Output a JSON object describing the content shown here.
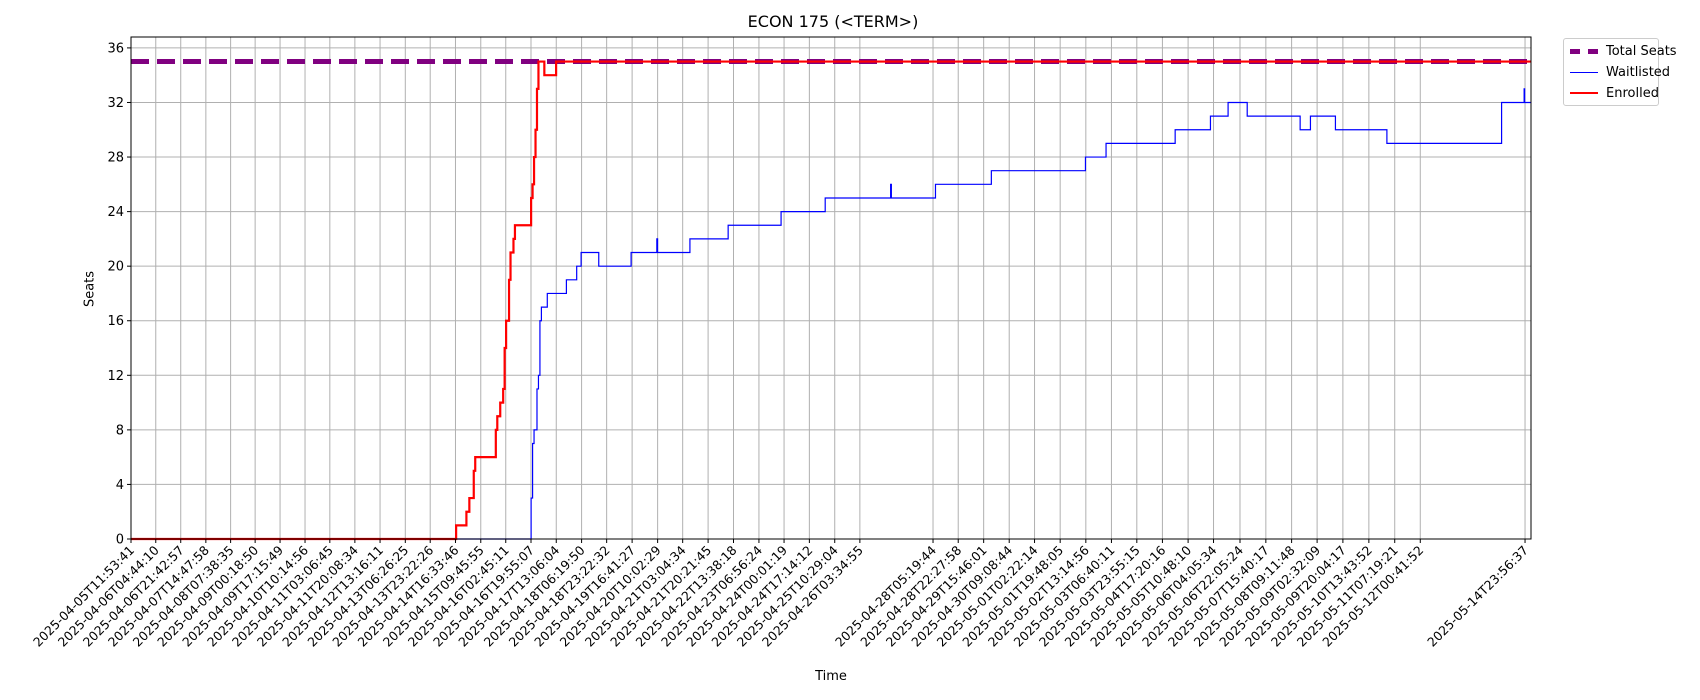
{
  "chart_data": {
    "type": "line",
    "title": "ECON 175 (<TERM>)",
    "xlabel": "Time",
    "ylabel": "Seats",
    "ylim": [
      0,
      36.8
    ],
    "yticks": [
      0,
      4,
      8,
      12,
      16,
      20,
      24,
      28,
      32,
      36
    ],
    "grid": true,
    "legend_position": "outside top-right",
    "x_range": [
      "2025-04-05T11:53:41",
      "2025-05-15T04:00:00"
    ],
    "x_tick_labels": [
      "2025-04-05T11:53:41",
      "2025-04-06T04:44:10",
      "2025-04-06T21:42:57",
      "2025-04-07T14:47:58",
      "2025-04-08T07:38:35",
      "2025-04-09T00:18:50",
      "2025-04-09T17:15:49",
      "2025-04-10T10:14:56",
      "2025-04-11T03:06:45",
      "2025-04-11T20:08:34",
      "2025-04-12T13:16:11",
      "2025-04-13T06:26:25",
      "2025-04-13T23:22:26",
      "2025-04-14T16:33:46",
      "2025-04-15T09:45:55",
      "2025-04-16T02:45:11",
      "2025-04-16T19:55:07",
      "2025-04-17T13:06:04",
      "2025-04-18T06:19:50",
      "2025-04-18T23:22:32",
      "2025-04-19T16:41:27",
      "2025-04-20T10:02:29",
      "2025-04-21T03:04:34",
      "2025-04-21T20:21:45",
      "2025-04-22T13:38:18",
      "2025-04-23T06:56:24",
      "2025-04-24T00:01:19",
      "2025-04-24T17:14:12",
      "2025-04-25T10:29:04",
      "2025-04-26T03:34:55",
      "2025-04-28T05:19:44",
      "2025-04-28T22:27:58",
      "2025-04-29T15:46:01",
      "2025-04-30T09:08:44",
      "2025-05-01T02:22:14",
      "2025-05-01T19:48:05",
      "2025-05-02T13:14:56",
      "2025-05-03T06:40:11",
      "2025-05-03T23:55:15",
      "2025-05-04T17:20:16",
      "2025-05-05T10:48:10",
      "2025-05-06T04:05:34",
      "2025-05-06T22:05:24",
      "2025-05-07T15:40:17",
      "2025-05-08T09:11:48",
      "2025-05-09T02:32:09",
      "2025-05-09T20:04:17",
      "2025-05-10T13:43:52",
      "2025-05-11T07:19:21",
      "2025-05-12T00:41:52",
      "2025-05-14T23:56:37"
    ],
    "series": [
      {
        "name": "Total Seats",
        "color": "#800080",
        "style": "dashed",
        "points": [
          [
            "2025-04-05T11:53:41",
            35
          ],
          [
            "2025-05-15T04:00:00",
            35
          ]
        ]
      },
      {
        "name": "Waitlisted",
        "color": "#0000ff",
        "style": "step",
        "points": [
          [
            "2025-04-05T11:53:41",
            0
          ],
          [
            "2025-04-16T19:00:00",
            0
          ],
          [
            "2025-04-16T20:00:00",
            3
          ],
          [
            "2025-04-16T21:00:00",
            7
          ],
          [
            "2025-04-16T22:00:00",
            8
          ],
          [
            "2025-04-17T00:00:00",
            11
          ],
          [
            "2025-04-17T01:00:00",
            12
          ],
          [
            "2025-04-17T02:00:00",
            16
          ],
          [
            "2025-04-17T03:00:00",
            17
          ],
          [
            "2025-04-17T07:00:00",
            18
          ],
          [
            "2025-04-17T20:00:00",
            19
          ],
          [
            "2025-04-18T03:00:00",
            20
          ],
          [
            "2025-04-18T06:00:00",
            21
          ],
          [
            "2025-04-18T18:00:00",
            20
          ],
          [
            "2025-04-19T16:00:00",
            21
          ],
          [
            "2025-04-20T09:00:00",
            21
          ],
          [
            "2025-04-20T09:30:00",
            22
          ],
          [
            "2025-04-20T10:00:00",
            21
          ],
          [
            "2025-04-21T08:00:00",
            22
          ],
          [
            "2025-04-22T10:00:00",
            23
          ],
          [
            "2025-04-23T22:00:00",
            24
          ],
          [
            "2025-04-25T04:00:00",
            25
          ],
          [
            "2025-04-27T00:00:00",
            25
          ],
          [
            "2025-04-27T00:30:00",
            26
          ],
          [
            "2025-04-27T01:00:00",
            25
          ],
          [
            "2025-04-28T07:00:00",
            26
          ],
          [
            "2025-04-29T21:00:00",
            27
          ],
          [
            "2025-05-02T13:00:00",
            28
          ],
          [
            "2025-05-03T03:00:00",
            29
          ],
          [
            "2025-05-05T02:00:00",
            30
          ],
          [
            "2025-05-06T02:00:00",
            31
          ],
          [
            "2025-05-06T14:00:00",
            32
          ],
          [
            "2025-05-07T03:00:00",
            31
          ],
          [
            "2025-05-08T15:00:00",
            30
          ],
          [
            "2025-05-08T22:00:00",
            31
          ],
          [
            "2025-05-09T15:00:00",
            30
          ],
          [
            "2025-05-11T02:00:00",
            29
          ],
          [
            "2025-05-14T08:00:00",
            32
          ],
          [
            "2025-05-14T23:00:00",
            32
          ],
          [
            "2025-05-14T23:20:00",
            33
          ],
          [
            "2025-05-14T23:40:00",
            32
          ],
          [
            "2025-05-15T04:00:00",
            32
          ]
        ]
      },
      {
        "name": "Enrolled",
        "color": "#ff0000",
        "style": "step",
        "points": [
          [
            "2025-04-05T11:53:41",
            0
          ],
          [
            "2025-04-14T16:33:46",
            0
          ],
          [
            "2025-04-14T17:00:00",
            1
          ],
          [
            "2025-04-15T00:00:00",
            2
          ],
          [
            "2025-04-15T02:00:00",
            3
          ],
          [
            "2025-04-15T05:00:00",
            5
          ],
          [
            "2025-04-15T06:00:00",
            6
          ],
          [
            "2025-04-15T20:00:00",
            8
          ],
          [
            "2025-04-15T21:00:00",
            9
          ],
          [
            "2025-04-15T23:00:00",
            10
          ],
          [
            "2025-04-16T01:00:00",
            11
          ],
          [
            "2025-04-16T02:00:00",
            14
          ],
          [
            "2025-04-16T03:00:00",
            16
          ],
          [
            "2025-04-16T05:00:00",
            19
          ],
          [
            "2025-04-16T06:00:00",
            21
          ],
          [
            "2025-04-16T08:00:00",
            22
          ],
          [
            "2025-04-16T09:00:00",
            23
          ],
          [
            "2025-04-16T20:00:00",
            25
          ],
          [
            "2025-04-16T21:00:00",
            26
          ],
          [
            "2025-04-16T22:00:00",
            28
          ],
          [
            "2025-04-16T23:00:00",
            30
          ],
          [
            "2025-04-17T00:00:00",
            33
          ],
          [
            "2025-04-17T01:00:00",
            35
          ],
          [
            "2025-04-17T05:00:00",
            34
          ],
          [
            "2025-04-17T13:00:00",
            35
          ],
          [
            "2025-05-15T04:00:00",
            35
          ]
        ]
      }
    ]
  }
}
